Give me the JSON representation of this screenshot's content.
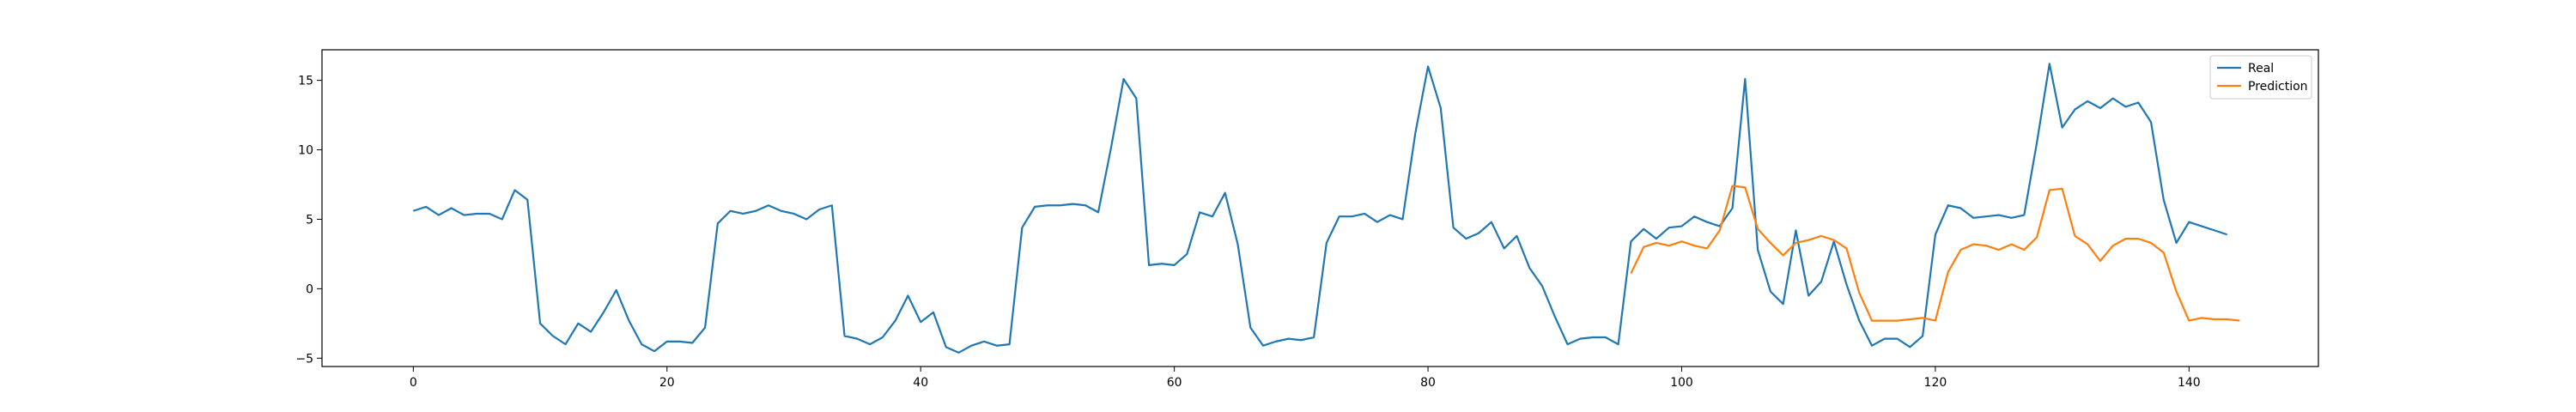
{
  "chart_data": {
    "type": "line",
    "title": "",
    "xlabel": "",
    "ylabel": "",
    "xlim": [
      -7.2,
      150.2
    ],
    "ylim": [
      -5.6,
      17.2
    ],
    "xticks": [
      0,
      20,
      40,
      60,
      80,
      100,
      120,
      140
    ],
    "yticks": [
      -5,
      0,
      5,
      10,
      15
    ],
    "grid": false,
    "legend_position": "top-right",
    "series": [
      {
        "name": "Real",
        "color": "#1f77b4",
        "x_start": 0,
        "values": [
          5.6,
          5.9,
          5.3,
          5.8,
          5.3,
          5.4,
          5.4,
          5.0,
          7.1,
          6.4,
          -2.5,
          -3.4,
          -4.0,
          -2.5,
          -3.1,
          -1.7,
          -0.1,
          -2.3,
          -4.0,
          -4.5,
          -3.8,
          -3.8,
          -3.9,
          -2.8,
          4.7,
          5.6,
          5.4,
          5.6,
          6.0,
          5.6,
          5.4,
          5.0,
          5.7,
          6.0,
          -3.4,
          -3.6,
          -4.0,
          -3.5,
          -2.3,
          -0.5,
          -2.4,
          -1.7,
          -4.2,
          -4.6,
          -4.1,
          -3.8,
          -4.1,
          -4.0,
          4.4,
          5.9,
          6.0,
          6.0,
          6.1,
          6.0,
          5.5,
          10.1,
          15.1,
          13.7,
          1.7,
          1.8,
          1.7,
          2.5,
          5.5,
          5.2,
          6.9,
          3.2,
          -2.8,
          -4.1,
          -3.8,
          -3.6,
          -3.7,
          -3.5,
          3.3,
          5.2,
          5.2,
          5.4,
          4.8,
          5.3,
          5.0,
          11.2,
          16.0,
          13.0,
          4.4,
          3.6,
          4.0,
          4.8,
          2.9,
          3.8,
          1.5,
          0.2,
          -2.0,
          -4.0,
          -3.6,
          -3.5,
          -3.5,
          -4.0,
          3.4,
          4.3,
          3.6,
          4.4,
          4.5,
          5.2,
          4.8,
          4.5,
          5.8,
          15.1,
          2.8,
          -0.2,
          -1.1,
          4.2,
          -0.5,
          0.5,
          3.4,
          0.3,
          -2.3,
          -4.1,
          -3.6,
          -3.6,
          -4.2,
          -3.4,
          3.9,
          6.0,
          5.8,
          5.1,
          5.2,
          5.3,
          5.1,
          5.3,
          10.5,
          16.2,
          11.6,
          12.9,
          13.5,
          13.0,
          13.7,
          13.1,
          13.4,
          12.0,
          6.4,
          3.3,
          4.8,
          4.5,
          4.2,
          3.9
        ]
      },
      {
        "name": "Prediction",
        "color": "#ff7f0e",
        "x_start": 96,
        "values": [
          1.1,
          3.0,
          3.3,
          3.1,
          3.4,
          3.1,
          2.9,
          4.2,
          7.4,
          7.3,
          4.3,
          3.3,
          2.4,
          3.3,
          3.5,
          3.8,
          3.5,
          2.9,
          -0.3,
          -2.3,
          -2.3,
          -2.3,
          -2.2,
          -2.1,
          -2.3,
          1.2,
          2.8,
          3.2,
          3.1,
          2.8,
          3.2,
          2.8,
          3.7,
          7.1,
          7.2,
          3.8,
          3.2,
          2.0,
          3.1,
          3.6,
          3.6,
          3.3,
          2.6,
          -0.2,
          -2.3,
          -2.1,
          -2.2,
          -2.2,
          -2.3
        ]
      }
    ]
  }
}
